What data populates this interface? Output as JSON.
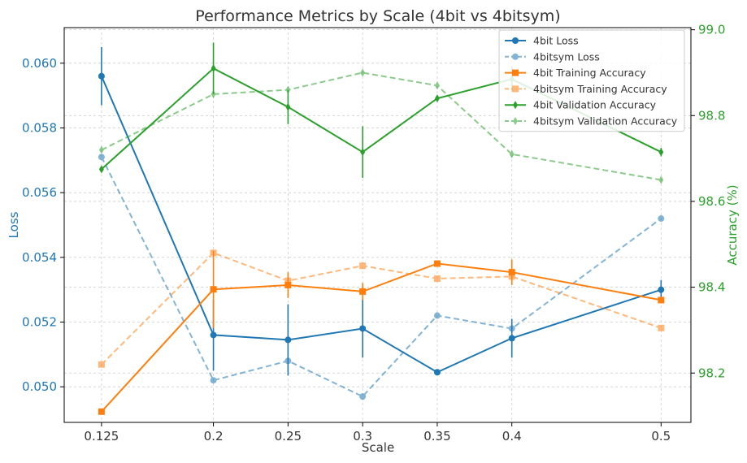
{
  "chart_data": {
    "type": "line",
    "title": "Performance Metrics by Scale (4bit vs 4bitsym)",
    "xlabel": "Scale",
    "ylabel_left": "Loss",
    "ylabel_right": "Accuracy (%)",
    "x": [
      "0.125",
      "0.2",
      "0.25",
      "0.3",
      "0.35",
      "0.4",
      "0.5"
    ],
    "xlim": [
      0.1,
      0.52
    ],
    "ylim_left": [
      0.0489,
      0.0611
    ],
    "ylim_right": [
      98.085,
      99.005
    ],
    "yticks_left": [
      "0.050",
      "0.052",
      "0.054",
      "0.056",
      "0.058",
      "0.060"
    ],
    "yticks_right": [
      "98.2",
      "98.4",
      "98.6",
      "98.8",
      "99.0"
    ],
    "grid": true,
    "legend_position": "top-right",
    "colors": {
      "loss_axis": "#1f77b4",
      "accuracy_axis": "#2ca02c",
      "blue": "#1f77b4",
      "orange": "#ff7f0e",
      "green": "#2ca02c"
    },
    "series": [
      {
        "name": "4bit Loss",
        "axis": "left",
        "color": "#1f77b4",
        "style": "solid",
        "marker": "circle",
        "values": [
          0.0596,
          0.0516,
          0.05145,
          0.0518,
          0.05045,
          0.0515,
          0.053
        ],
        "err": [
          0.0009,
          0.0011,
          0.0011,
          0.0009,
          0.0,
          0.0006,
          0.0003
        ]
      },
      {
        "name": "4bitsym Loss",
        "axis": "left",
        "color": "#1f77b4",
        "style": "dashed",
        "marker": "circle",
        "values": [
          0.0571,
          0.0502,
          0.0508,
          0.0497,
          0.0522,
          0.0518,
          0.0552
        ],
        "err": [
          0,
          0,
          0,
          0,
          0,
          0,
          0
        ]
      },
      {
        "name": "4bit Training Accuracy",
        "axis": "right",
        "color": "#ff7f0e",
        "style": "solid",
        "marker": "square",
        "values": [
          98.11,
          98.395,
          98.405,
          98.39,
          98.455,
          98.435,
          98.37
        ],
        "err": [
          0,
          0.09,
          0.03,
          0.02,
          0,
          0.03,
          0
        ]
      },
      {
        "name": "4bitsym Training Accuracy",
        "axis": "right",
        "color": "#ff7f0e",
        "style": "dashed",
        "marker": "square",
        "values": [
          98.22,
          98.48,
          98.415,
          98.45,
          98.42,
          98.425,
          98.305
        ],
        "err": [
          0,
          0,
          0,
          0,
          0,
          0,
          0
        ]
      },
      {
        "name": "4bit Validation Accuracy",
        "axis": "right",
        "color": "#2ca02c",
        "style": "solid",
        "marker": "diamond",
        "values": [
          98.675,
          98.91,
          98.82,
          98.715,
          98.84,
          98.885,
          98.715
        ],
        "err": [
          0,
          0.06,
          0.04,
          0.06,
          0,
          0.03,
          0.01
        ]
      },
      {
        "name": "4bitsym Validation Accuracy",
        "axis": "right",
        "color": "#2ca02c",
        "style": "dashed",
        "marker": "diamond",
        "values": [
          98.72,
          98.85,
          98.86,
          98.9,
          98.87,
          98.71,
          98.65
        ],
        "err": [
          0,
          0,
          0,
          0,
          0,
          0,
          0
        ]
      }
    ]
  }
}
